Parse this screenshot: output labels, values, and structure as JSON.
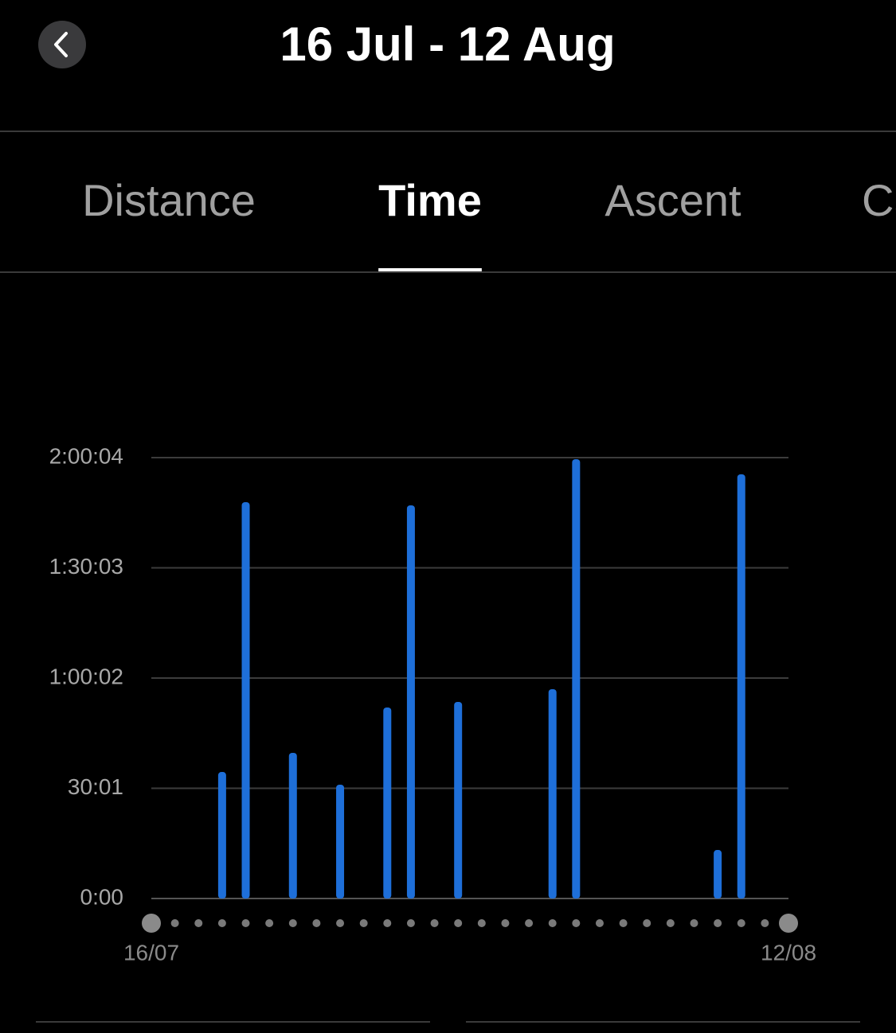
{
  "header": {
    "title": "16 Jul - 12 Aug"
  },
  "tabs": {
    "items": [
      "Distance",
      "Time",
      "Ascent",
      "Ca"
    ],
    "active": 1
  },
  "chart_data": {
    "type": "bar",
    "color": "#1e6fd9",
    "grid": true,
    "categories": [
      "16/07",
      null,
      null,
      null,
      null,
      null,
      null,
      null,
      null,
      null,
      null,
      null,
      null,
      null,
      null,
      null,
      null,
      null,
      null,
      null,
      null,
      null,
      null,
      null,
      null,
      null,
      null,
      "12/08"
    ],
    "values": [
      null,
      null,
      null,
      2067,
      6476,
      null,
      2380,
      null,
      1860,
      null,
      3121,
      6424,
      null,
      3212,
      null,
      null,
      null,
      3420,
      7178,
      null,
      null,
      null,
      null,
      null,
      793,
      6931,
      null,
      null
    ],
    "ylim": [
      0,
      7204
    ],
    "yticks": [
      {
        "value": 0,
        "label": "0:00"
      },
      {
        "value": 1801,
        "label": "30:01"
      },
      {
        "value": 3602,
        "label": "1:00:02"
      },
      {
        "value": 5403,
        "label": "1:30:03"
      },
      {
        "value": 7204,
        "label": "2:00:04"
      }
    ]
  }
}
